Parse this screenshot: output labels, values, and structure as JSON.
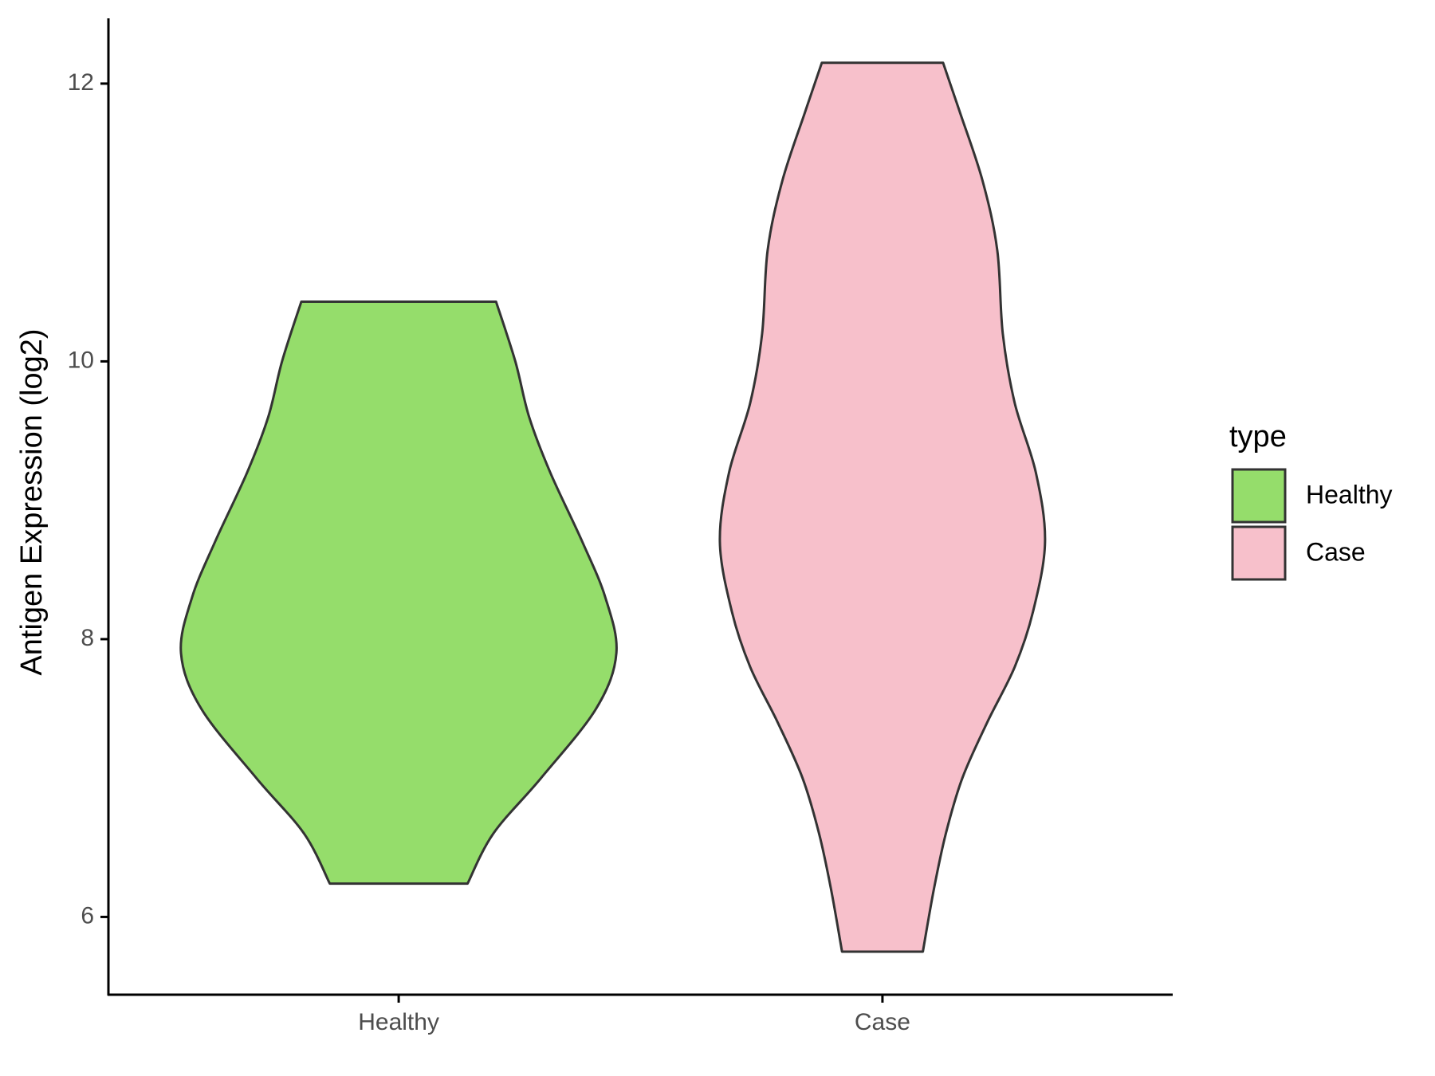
{
  "chart_data": {
    "type": "violin",
    "y_label": "Antigen Expression (log2)",
    "categories": [
      "Healthy",
      "Case"
    ],
    "legend_title": "type",
    "legend_position": "right",
    "ylim": [
      5.44,
      12.47
    ],
    "yticks": [
      6,
      8,
      10,
      12
    ],
    "series": [
      {
        "name": "Healthy",
        "color": "#95dd6b",
        "y": [
          6.24,
          6.6,
          7.0,
          7.5,
          7.9,
          8.3,
          8.7,
          9.2,
          9.6,
          10.0,
          10.43
        ],
        "density": [
          0.75,
          1.03,
          1.55,
          2.15,
          2.37,
          2.25,
          2.0,
          1.65,
          1.42,
          1.27,
          1.06
        ]
      },
      {
        "name": "Case",
        "color": "#f7c0cb",
        "y": [
          5.75,
          6.2,
          6.6,
          7.0,
          7.4,
          7.8,
          8.2,
          8.7,
          9.2,
          9.7,
          10.2,
          10.8,
          11.3,
          11.8,
          12.15
        ],
        "density": [
          0.44,
          0.56,
          0.69,
          0.87,
          1.14,
          1.44,
          1.64,
          1.77,
          1.67,
          1.44,
          1.31,
          1.25,
          1.09,
          0.84,
          0.66
        ]
      }
    ]
  }
}
